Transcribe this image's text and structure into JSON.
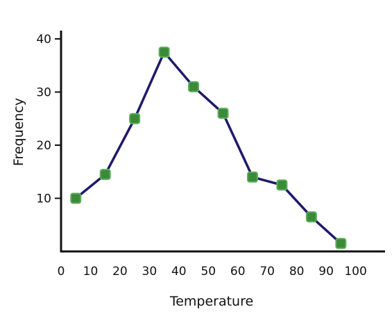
{
  "chart_data": {
    "type": "line",
    "title": "",
    "xlabel": "Temperature",
    "ylabel": "Frequency",
    "xlim": [
      0,
      110
    ],
    "ylim": [
      0,
      40
    ],
    "x_ticks": [
      0,
      10,
      20,
      30,
      40,
      50,
      60,
      70,
      80,
      90,
      100
    ],
    "y_ticks": [
      10,
      20,
      30,
      40
    ],
    "grid": false,
    "series": [
      {
        "x": [
          5,
          15,
          25,
          35,
          45,
          55,
          65,
          75,
          85,
          95
        ],
        "y": [
          10,
          14.5,
          25,
          37.5,
          31,
          26,
          14,
          12.5,
          6.5,
          1.5
        ]
      }
    ],
    "colors": {
      "line": "#1f1a6b",
      "marker": "#3a8a3a",
      "marker_edge": "#5fae5a",
      "axis": "#111111"
    }
  }
}
